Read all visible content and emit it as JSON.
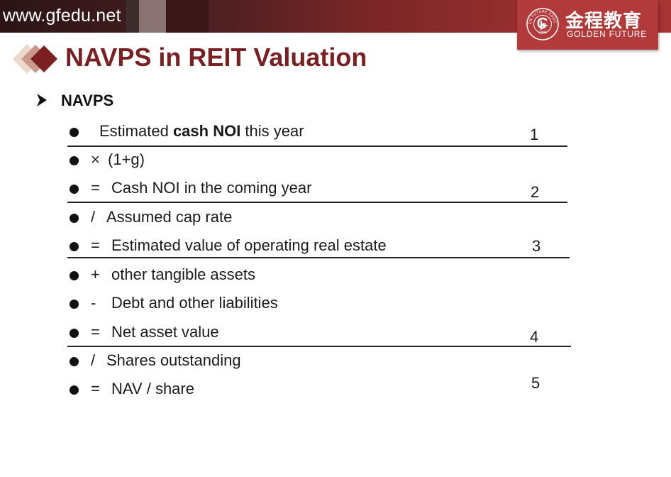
{
  "header": {
    "site_url": "www.gfedu.net",
    "logo_cn": "金程教育",
    "logo_en": "GOLDEN FUTURE",
    "logo_seal_ring": "GOLDEN FUTURE EDUCATION",
    "logo_seal_year": "1996"
  },
  "title": "NAVPS in REIT Valuation",
  "section": {
    "label": "NAVPS"
  },
  "rows": [
    {
      "op": "",
      "pre": "Estimated ",
      "bold": "cash NOI",
      "post": " this year"
    },
    {
      "op": "×",
      "text": "(1+g)"
    },
    {
      "op": "=",
      "text": "Cash NOI in the coming year"
    },
    {
      "op": "/",
      "text": "Assumed cap rate"
    },
    {
      "op": "=",
      "text": "Estimated value of operating real estate"
    },
    {
      "op": "+",
      "text": "other tangible assets"
    },
    {
      "op": "-",
      "text": "Debt and other liabilities"
    },
    {
      "op": "=",
      "text": "Net asset value"
    },
    {
      "op": "/",
      "text": "Shares outstanding"
    },
    {
      "op": "=",
      "text": "NAV / share"
    }
  ],
  "step_numbers": [
    "1",
    "2",
    "3",
    "4",
    "5"
  ],
  "colors": {
    "title": "#7a1f22",
    "logo_bg": "#b33a3a",
    "topbar": "#9a2f2f"
  }
}
